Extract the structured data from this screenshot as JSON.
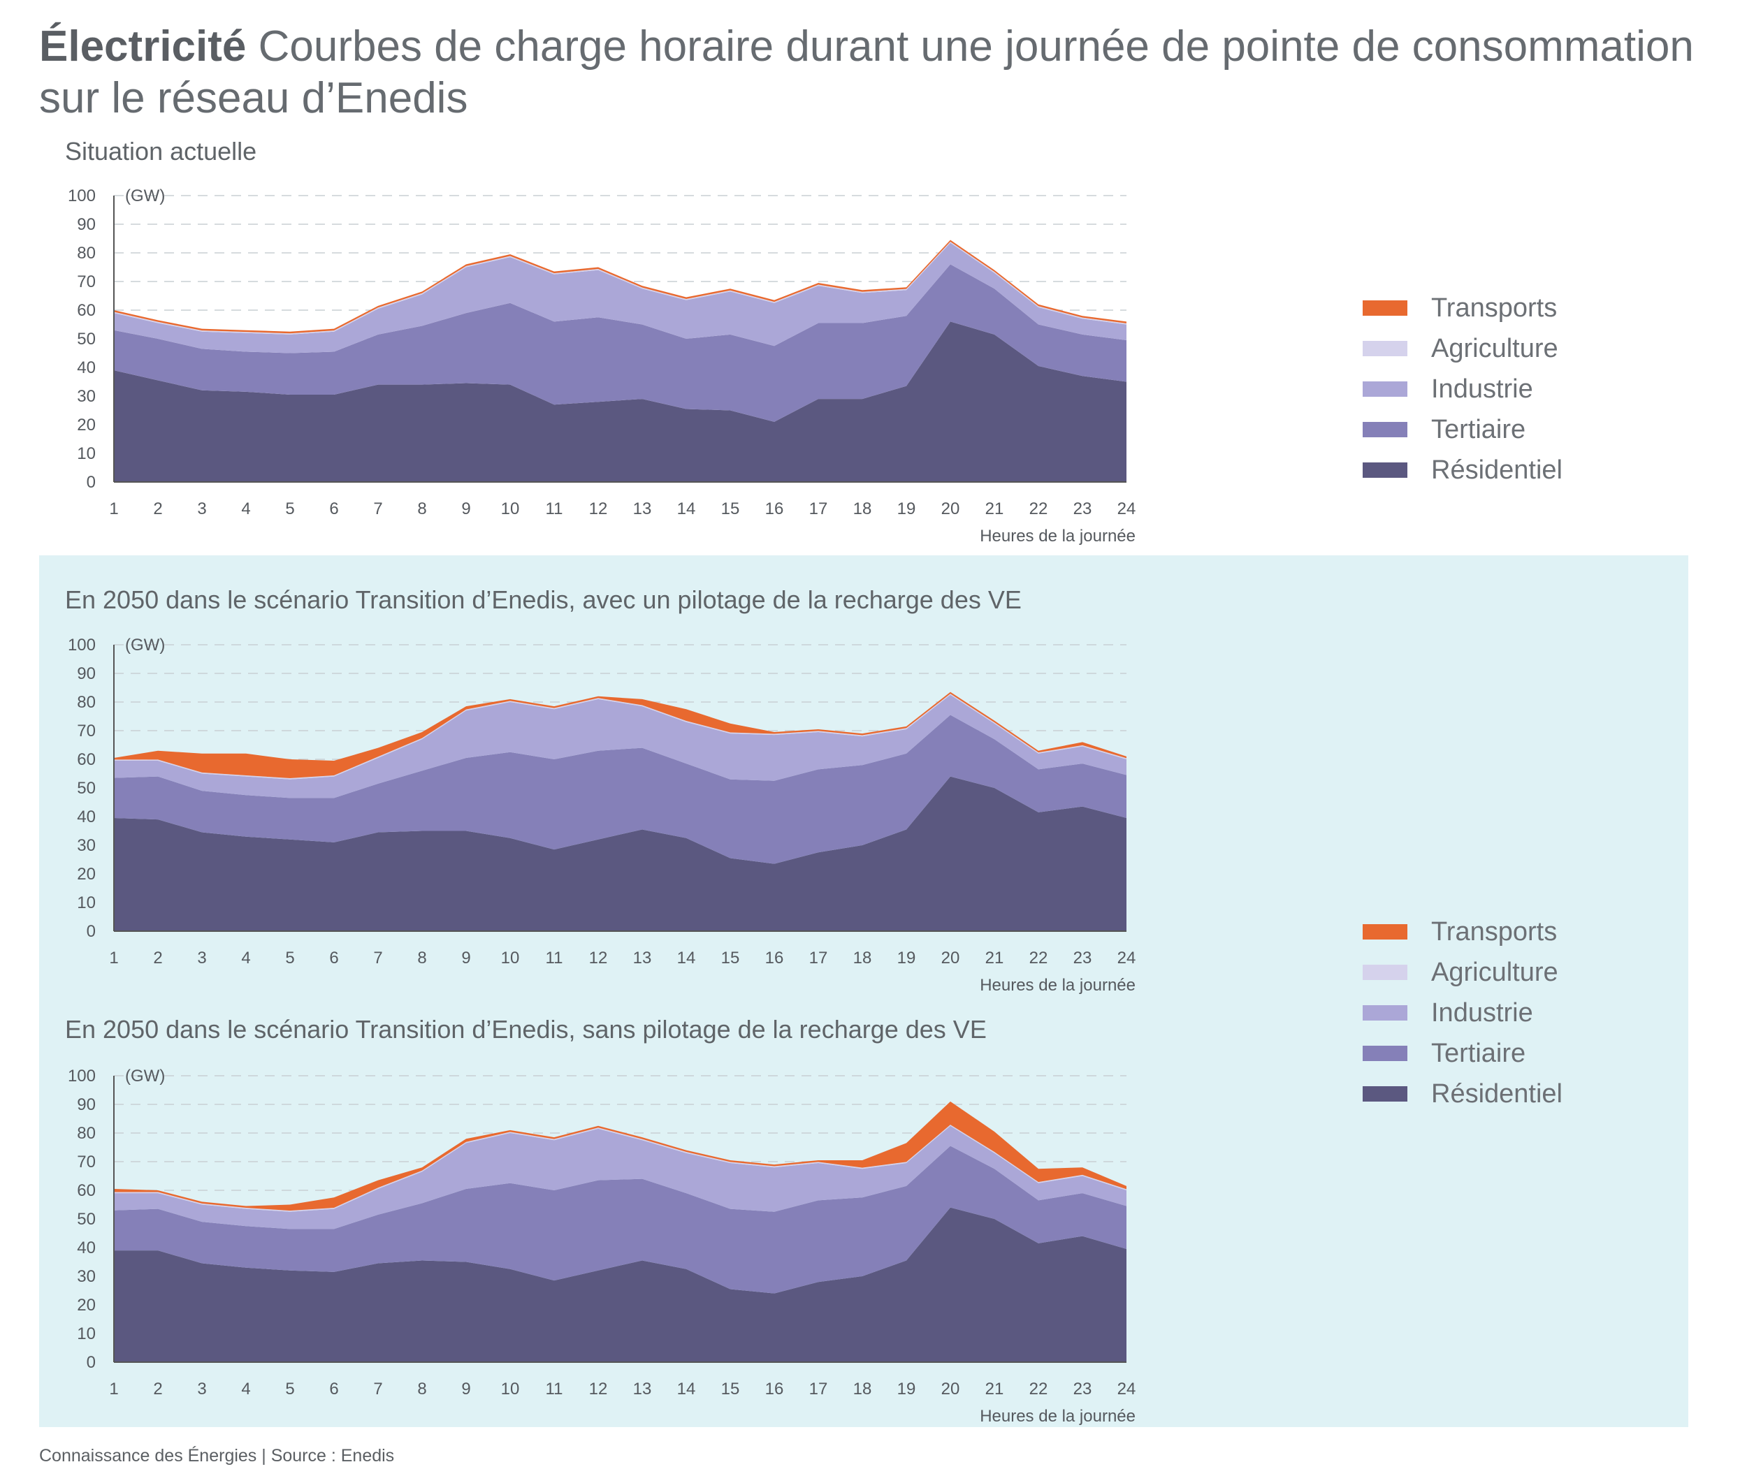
{
  "header": {
    "title_bold": "Électricité",
    "title_rest": " Courbes de charge horaire durant une journée de pointe de consommation sur le réseau d’Enedis"
  },
  "footer": {
    "text": "Connaissance des Énergies | Source : Enedis"
  },
  "legend": [
    {
      "label": "Transports",
      "color": "#e8692f"
    },
    {
      "label": "Agriculture",
      "color": "#d5d2ec"
    },
    {
      "label": "Industrie",
      "color": "#aba7d7"
    },
    {
      "label": "Tertiaire",
      "color": "#8580b8"
    },
    {
      "label": "Résidentiel",
      "color": "#5b5880"
    }
  ],
  "chart_data": [
    {
      "type": "area",
      "stacked": true,
      "title": "Situation actuelle",
      "unit_label": "(GW)",
      "xlabel": "Heures de la journée",
      "ylim": [
        0,
        100
      ],
      "yticks": [
        0,
        10,
        20,
        30,
        40,
        50,
        60,
        70,
        80,
        90,
        100
      ],
      "x": [
        1,
        2,
        3,
        4,
        5,
        6,
        7,
        8,
        9,
        10,
        11,
        12,
        13,
        14,
        15,
        16,
        17,
        18,
        19,
        20,
        21,
        22,
        23,
        24
      ],
      "series": [
        {
          "name": "Résidentiel",
          "values": [
            39,
            35.5,
            32,
            31.5,
            30.5,
            30.5,
            34,
            34,
            34.5,
            34,
            27,
            28,
            29,
            25.5,
            25,
            21,
            29,
            29,
            33.5,
            56,
            51.5,
            40.5,
            37,
            35
          ]
        },
        {
          "name": "Tertiaire",
          "values": [
            14,
            14.5,
            14.5,
            14,
            14.5,
            15,
            17.5,
            20.5,
            24.5,
            28.5,
            29,
            29.5,
            26,
            24.5,
            26.5,
            26.5,
            26.5,
            26.5,
            24.5,
            20,
            16,
            14.5,
            14.5,
            14.5
          ]
        },
        {
          "name": "Industrie",
          "values": [
            6,
            5.5,
            6,
            6.5,
            6.5,
            7,
            9,
            11,
            16,
            16,
            16.5,
            16.5,
            12.5,
            13.5,
            15,
            15,
            13,
            10.5,
            9,
            7.5,
            5.5,
            6,
            5.5,
            5.5
          ]
        },
        {
          "name": "Agriculture",
          "values": [
            0.4,
            0.4,
            0.4,
            0.4,
            0.4,
            0.4,
            0.4,
            0.4,
            0.4,
            0.4,
            0.4,
            0.4,
            0.4,
            0.4,
            0.4,
            0.4,
            0.4,
            0.4,
            0.4,
            0.4,
            0.4,
            0.4,
            0.4,
            0.4
          ]
        },
        {
          "name": "Transports",
          "values": [
            0.6,
            0.6,
            0.6,
            0.6,
            0.6,
            0.6,
            0.6,
            0.6,
            0.6,
            0.6,
            0.6,
            0.6,
            0.6,
            0.6,
            0.6,
            0.6,
            0.6,
            0.6,
            0.6,
            0.6,
            0.6,
            0.6,
            0.6,
            0.6
          ]
        }
      ]
    },
    {
      "type": "area",
      "stacked": true,
      "title": "En 2050 dans le scénario Transition d’Enedis, avec un pilotage de la recharge des VE",
      "unit_label": "(GW)",
      "xlabel": "Heures de la journée",
      "ylim": [
        0,
        100
      ],
      "yticks": [
        0,
        10,
        20,
        30,
        40,
        50,
        60,
        70,
        80,
        90,
        100
      ],
      "x": [
        1,
        2,
        3,
        4,
        5,
        6,
        7,
        8,
        9,
        10,
        11,
        12,
        13,
        14,
        15,
        16,
        17,
        18,
        19,
        20,
        21,
        22,
        23,
        24
      ],
      "series": [
        {
          "name": "Résidentiel",
          "values": [
            39.5,
            39,
            34.5,
            33,
            32,
            31,
            34.5,
            35,
            35,
            32.5,
            28.5,
            32,
            35.5,
            32.5,
            25.5,
            23.5,
            27.5,
            30,
            35.5,
            54,
            50,
            41.5,
            43.5,
            39.5
          ]
        },
        {
          "name": "Tertiaire",
          "values": [
            14,
            15,
            14.5,
            14.5,
            14.5,
            15.5,
            17,
            21,
            25.5,
            30,
            31.5,
            31,
            28.5,
            26,
            27.5,
            29,
            29,
            28,
            26.5,
            21.5,
            17,
            15,
            15,
            15
          ]
        },
        {
          "name": "Industrie",
          "values": [
            6,
            5.5,
            6,
            6.5,
            6.5,
            7.5,
            9,
            11,
            16.5,
            17.5,
            17.5,
            18,
            14.5,
            14.5,
            16,
            16,
            13,
            10,
            8.5,
            7,
            5.5,
            5.5,
            6,
            5.5
          ]
        },
        {
          "name": "Agriculture",
          "values": [
            0.4,
            0.4,
            0.4,
            0.4,
            0.4,
            0.4,
            0.4,
            0.4,
            0.4,
            0.4,
            0.4,
            0.4,
            0.4,
            0.4,
            0.4,
            0.4,
            0.4,
            0.4,
            0.4,
            0.4,
            0.4,
            0.4,
            0.4,
            0.4
          ]
        },
        {
          "name": "Transports",
          "values": [
            0.6,
            3.1,
            6.6,
            7.6,
            6.6,
            5.1,
            3.1,
            2.1,
            1.1,
            0.6,
            0.6,
            0.6,
            2.1,
            4.1,
            3.1,
            0.6,
            0.6,
            0.6,
            0.6,
            0.6,
            0.6,
            0.6,
            1.1,
            0.6
          ]
        }
      ]
    },
    {
      "type": "area",
      "stacked": true,
      "title": "En 2050 dans le scénario Transition d’Enedis, sans pilotage de la recharge des VE",
      "unit_label": "(GW)",
      "xlabel": "Heures de la journée",
      "ylim": [
        0,
        100
      ],
      "yticks": [
        0,
        10,
        20,
        30,
        40,
        50,
        60,
        70,
        80,
        90,
        100
      ],
      "x": [
        1,
        2,
        3,
        4,
        5,
        6,
        7,
        8,
        9,
        10,
        11,
        12,
        13,
        14,
        15,
        16,
        17,
        18,
        19,
        20,
        21,
        22,
        23,
        24
      ],
      "series": [
        {
          "name": "Résidentiel",
          "values": [
            39,
            39,
            34.5,
            33,
            32,
            31.5,
            34.5,
            35.5,
            35,
            32.5,
            28.5,
            32,
            35.5,
            32.5,
            25.5,
            24,
            28,
            30,
            35.5,
            54,
            50,
            41.5,
            44,
            39.5
          ]
        },
        {
          "name": "Tertiaire",
          "values": [
            14,
            14.5,
            14.5,
            14.5,
            14.5,
            15,
            17,
            20,
            25.5,
            30,
            31.5,
            31.5,
            28.5,
            26.5,
            28,
            28.5,
            28.5,
            27.5,
            26,
            21.5,
            17.5,
            15,
            15,
            15
          ]
        },
        {
          "name": "Industrie",
          "values": [
            6,
            5.5,
            6,
            6,
            6,
            7,
            9,
            11,
            16,
            17.5,
            17.5,
            18,
            13.5,
            14,
            16,
            15.5,
            13,
            10,
            8,
            7,
            5.5,
            6,
            6,
            5.5
          ]
        },
        {
          "name": "Agriculture",
          "values": [
            0.4,
            0.4,
            0.4,
            0.4,
            0.4,
            0.4,
            0.4,
            0.4,
            0.4,
            0.4,
            0.4,
            0.4,
            0.4,
            0.4,
            0.4,
            0.4,
            0.4,
            0.4,
            0.4,
            0.4,
            0.4,
            0.4,
            0.4,
            0.4
          ]
        },
        {
          "name": "Transports",
          "values": [
            1.1,
            0.6,
            0.6,
            0.6,
            2.1,
            3.6,
            2.6,
            1.1,
            1.1,
            0.6,
            0.6,
            0.6,
            0.6,
            0.6,
            0.6,
            0.6,
            0.6,
            2.6,
            6.6,
            8.1,
            7.1,
            4.6,
            2.6,
            1.1
          ]
        }
      ]
    }
  ]
}
